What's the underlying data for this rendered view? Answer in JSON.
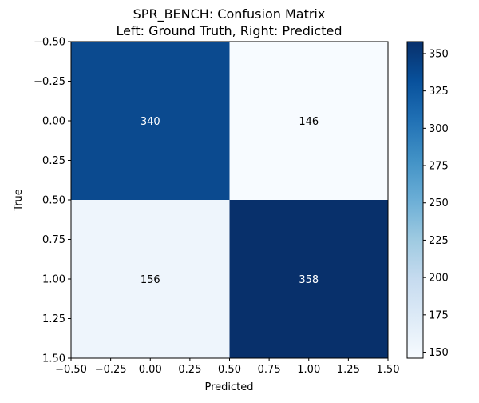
{
  "chart_data": {
    "type": "heatmap",
    "title": "SPR_BENCH: Confusion Matrix",
    "subtitle": "Left: Ground Truth, Right: Predicted",
    "xlabel": "Predicted",
    "ylabel": "True",
    "xlim": [
      -0.5,
      1.5
    ],
    "ylim": [
      1.5,
      -0.5
    ],
    "x_ticks": [
      "-0.50",
      "-0.25",
      "0.00",
      "0.25",
      "0.50",
      "0.75",
      "1.00",
      "1.25",
      "1.50"
    ],
    "y_ticks": [
      "-0.50",
      "-0.25",
      "0.00",
      "0.25",
      "0.50",
      "0.75",
      "1.00",
      "1.25",
      "1.50"
    ],
    "matrix": [
      [
        340,
        146
      ],
      [
        156,
        358
      ]
    ],
    "colormap": "Blues",
    "colorbar": {
      "min": 146,
      "max": 358,
      "ticks": [
        150,
        175,
        200,
        225,
        250,
        275,
        300,
        325,
        350
      ]
    },
    "colors": {
      "cell_0_0": "#0b4a8f",
      "cell_0_1": "#f7fbff",
      "cell_1_0": "#eef5fc",
      "cell_1_1": "#08306b"
    }
  }
}
